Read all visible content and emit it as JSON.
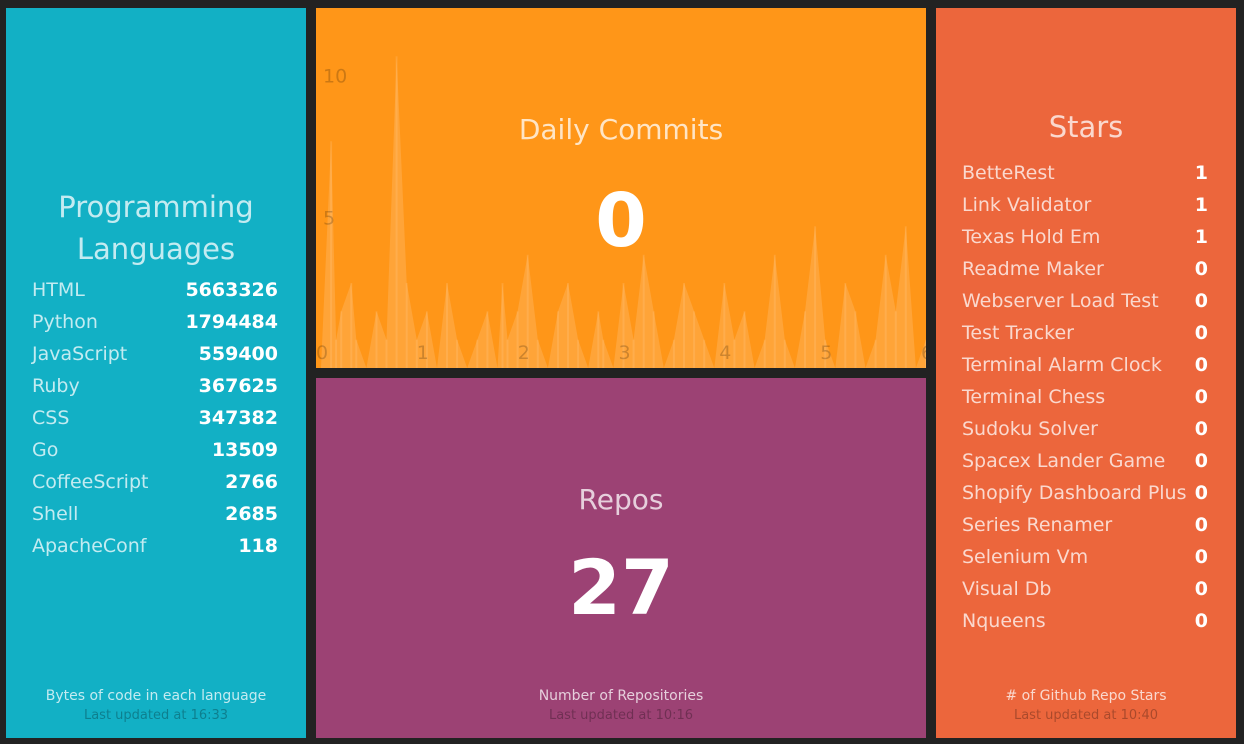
{
  "languages": {
    "title": "Programming Languages",
    "items": [
      {
        "label": "HTML",
        "value": "5663326"
      },
      {
        "label": "Python",
        "value": "1794484"
      },
      {
        "label": "JavaScript",
        "value": "559400"
      },
      {
        "label": "Ruby",
        "value": "367625"
      },
      {
        "label": "CSS",
        "value": "347382"
      },
      {
        "label": "Go",
        "value": "13509"
      },
      {
        "label": "CoffeeScript",
        "value": "2766"
      },
      {
        "label": "Shell",
        "value": "2685"
      },
      {
        "label": "ApacheConf",
        "value": "118"
      }
    ],
    "more_info": "Bytes of code in each language",
    "updated": "Last updated at 16:33",
    "color": "#12b0c5"
  },
  "commits": {
    "title": "Daily Commits",
    "value": "0",
    "color": "#ff9618",
    "chart_data": {
      "type": "area",
      "x_ticks": [
        "0",
        "1",
        "2",
        "3",
        "4",
        "5",
        "6"
      ],
      "y_ticks": [
        "5",
        "10"
      ],
      "xlim": [
        0,
        6
      ],
      "ylim": [
        0,
        12
      ],
      "grid": false,
      "x": [
        0.0,
        0.1,
        0.15,
        0.2,
        0.3,
        0.35,
        0.45,
        0.55,
        0.65,
        0.75,
        0.85,
        0.95,
        1.05,
        1.15,
        1.25,
        1.35,
        1.45,
        1.55,
        1.65,
        1.75,
        1.8,
        1.85,
        1.95,
        2.05,
        2.15,
        2.25,
        2.35,
        2.45,
        2.55,
        2.65,
        2.75,
        2.8,
        2.9,
        3.0,
        3.1,
        3.2,
        3.3,
        3.4,
        3.5,
        3.6,
        3.7,
        3.8,
        3.9,
        4.0,
        4.1,
        4.2,
        4.3,
        4.4,
        4.5,
        4.6,
        4.7,
        4.8,
        4.9,
        5.0,
        5.1,
        5.2,
        5.3,
        5.4,
        5.5,
        5.6,
        5.7,
        5.8,
        5.9,
        6.0
      ],
      "values": [
        0,
        8,
        1,
        2,
        3,
        1,
        0,
        2,
        1,
        11,
        3,
        1,
        2,
        0,
        3,
        1,
        0,
        1,
        2,
        0,
        3,
        1,
        2,
        4,
        1,
        0,
        2,
        3,
        1,
        0,
        2,
        1,
        0,
        3,
        1,
        4,
        2,
        0,
        1,
        3,
        2,
        1,
        0,
        3,
        1,
        2,
        0,
        1,
        4,
        1,
        0,
        2,
        5,
        1,
        0,
        3,
        2,
        0,
        1,
        4,
        2,
        5,
        0,
        1
      ]
    }
  },
  "repos": {
    "title": "Repos",
    "value": "27",
    "more_info": "Number of Repositories",
    "updated": "Last updated at 10:16",
    "color": "#9c4274"
  },
  "stars": {
    "title": "Stars",
    "items": [
      {
        "label": "BetteRest",
        "value": "1"
      },
      {
        "label": "Link Validator",
        "value": "1"
      },
      {
        "label": "Texas Hold Em",
        "value": "1"
      },
      {
        "label": "Readme Maker",
        "value": "0"
      },
      {
        "label": "Webserver Load Test",
        "value": "0"
      },
      {
        "label": "Test Tracker",
        "value": "0"
      },
      {
        "label": "Terminal Alarm Clock",
        "value": "0"
      },
      {
        "label": "Terminal Chess",
        "value": "0"
      },
      {
        "label": "Sudoku Solver",
        "value": "0"
      },
      {
        "label": "Spacex Lander Game",
        "value": "0"
      },
      {
        "label": "Shopify Dashboard Plus",
        "value": "0"
      },
      {
        "label": "Series Renamer",
        "value": "0"
      },
      {
        "label": "Selenium Vm",
        "value": "0"
      },
      {
        "label": "Visual Db",
        "value": "0"
      },
      {
        "label": "Nqueens",
        "value": "0"
      }
    ],
    "more_info": "# of Github Repo Stars",
    "updated": "Last updated at 10:40",
    "color": "#ec663c"
  }
}
